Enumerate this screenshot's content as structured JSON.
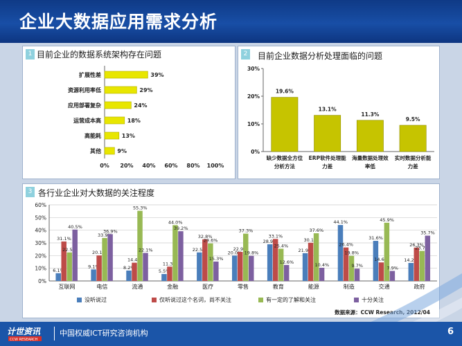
{
  "slide": {
    "title": "企业大数据应用需求分析",
    "footer_org": "中国权威ICT研究咨询机构",
    "page_number": "6",
    "logo_text": "计世资讯",
    "logo_subtext": "CCW RESEARCH",
    "colors": {
      "header": "#184ea6",
      "footer": "#1b55a8",
      "stage": "#c9d5e6",
      "bar_yellow": "#e8e600",
      "bar_olive": "#c6c400"
    }
  },
  "panels": [
    {
      "number": "1",
      "title": "目前企业的数据系统架构存在问题"
    },
    {
      "number": "2",
      "title": "目前企业数据分析处理面临的问题"
    },
    {
      "number": "3",
      "title": "各行业企业对大数据的关注程度"
    }
  ],
  "chart_data": [
    {
      "type": "bar",
      "orientation": "horizontal",
      "categories": [
        "扩展性差",
        "资源利用率低",
        "应用部署复杂",
        "运营成本高",
        "高能耗",
        "其他"
      ],
      "values": [
        39,
        29,
        24,
        18,
        13,
        9
      ],
      "value_labels": [
        "39%",
        "29%",
        "24%",
        "18%",
        "13%",
        "9%"
      ],
      "xlim": [
        0,
        100
      ],
      "x_ticks": [
        "0%",
        "20%",
        "40%",
        "60%",
        "80%",
        "100%"
      ],
      "title": "",
      "xlabel": "",
      "ylabel": "",
      "grid": false
    },
    {
      "type": "bar",
      "orientation": "vertical",
      "categories": [
        "缺少数据全方位分析方法",
        "ERP软件处理能力差",
        "海量数据处理效率低",
        "实时数据分析能力差"
      ],
      "category_lines": [
        [
          "缺少数据全方位",
          "分析方法"
        ],
        [
          "ERP软件处理能",
          "力差"
        ],
        [
          "海量数据处理效",
          "率低"
        ],
        [
          "实时数据分析能",
          "力差"
        ]
      ],
      "values": [
        19.6,
        13.1,
        11.3,
        9.5
      ],
      "value_labels": [
        "19.6%",
        "13.1%",
        "11.3%",
        "9.5%"
      ],
      "ylim": [
        0,
        30
      ],
      "y_ticks": [
        "0%",
        "10%",
        "20%",
        "30%"
      ],
      "title": "",
      "xlabel": "",
      "ylabel": "",
      "grid": false
    },
    {
      "type": "bar",
      "orientation": "vertical",
      "categories": [
        "互联网",
        "电信",
        "流通",
        "金融",
        "医疗",
        "零售",
        "教育",
        "能源",
        "制造",
        "交通",
        "政府"
      ],
      "series": [
        {
          "name": "没听说过",
          "color": "#4a7ebb",
          "values": [
            6.1,
            9.1,
            8.2,
            5.5,
            22.5,
            20.0,
            28.9,
            21.9,
            44.1,
            31.6,
            14.2
          ]
        },
        {
          "name": "仅听说过这个名词，尚不关注",
          "color": "#be4b48",
          "values": [
            31.1,
            20.1,
            14.4,
            11.3,
            32.8,
            22.9,
            33.1,
            30.1,
            26.4,
            14.6,
            26.3
          ]
        },
        {
          "name": "有一定的了解和关注",
          "color": "#98b954",
          "values": [
            22.5,
            33.9,
            55.3,
            44.0,
            29.6,
            37.3,
            25.4,
            37.6,
            19.8,
            45.9,
            23.7
          ]
        },
        {
          "name": "十分关注",
          "color": "#7d60a0",
          "values": [
            40.5,
            36.9,
            22.1,
            39.2,
            15.3,
            19.8,
            12.6,
            10.4,
            9.7,
            7.9,
            35.7
          ]
        }
      ],
      "value_labels": [
        [
          "6.1%",
          "9.1%",
          "8.2%",
          "5.5%",
          "22.5%",
          "20.0%",
          "28.9%",
          "21.9%",
          "44.1%",
          "31.6%",
          "14.2%"
        ],
        [
          "31.1%",
          "20.1%",
          "14.4%",
          "11.3%",
          "32.8%",
          "22.9%",
          "33.1%",
          "30.1%",
          "26.4%",
          "14.6%",
          "26.3%"
        ],
        [
          "22.5%",
          "33.9%",
          "55.3%",
          "44.0%",
          "29.6%",
          "37.3%",
          "25.4%",
          "37.6%",
          "19.8%",
          "45.9%",
          "23.7%"
        ],
        [
          "40.5%",
          "36.9%",
          "22.1%",
          "39.2%",
          "15.3%",
          "19.8%",
          "12.6%",
          "10.4%",
          "9.7%",
          "7.9%",
          "35.7%"
        ]
      ],
      "ylim": [
        0,
        60
      ],
      "y_ticks": [
        "0%",
        "10%",
        "20%",
        "30%",
        "40%",
        "50%",
        "60%"
      ],
      "legend_position": "bottom",
      "source": "数据来源：CCW Research, 2012/04",
      "title": "",
      "xlabel": "",
      "ylabel": "",
      "grid": true
    }
  ]
}
